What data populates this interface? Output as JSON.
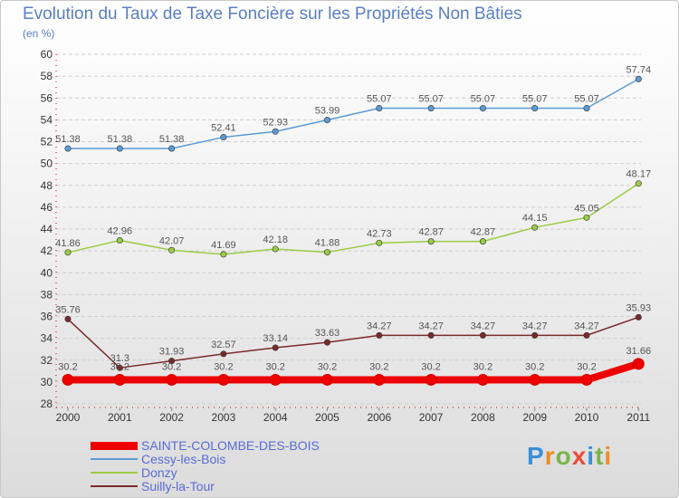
{
  "header": {
    "title": "Evolution du Taux de Taxe Foncière sur les Propriétés Non Bâties",
    "subtitle": "(en %)"
  },
  "logo": {
    "text": "Proxiti"
  },
  "chart_data": {
    "type": "line",
    "title": "Evolution du Taux de Taxe Foncière sur les Propriétés Non Bâties",
    "ylabel": "(en %)",
    "xlabel": "",
    "ylim": [
      28,
      60
    ],
    "yticks": [
      28,
      30,
      32,
      34,
      36,
      38,
      40,
      42,
      44,
      46,
      48,
      50,
      52,
      54,
      56,
      58,
      60
    ],
    "grid": "horizontal",
    "legend_position": "bottom-left",
    "categories": [
      "2000",
      "2001",
      "2002",
      "2003",
      "2004",
      "2005",
      "2006",
      "2007",
      "2008",
      "2009",
      "2010",
      "2011"
    ],
    "series": [
      {
        "name": "SAINTE-COLOMBE-DES-BOIS",
        "color": "#ee0000",
        "values": [
          30.2,
          30.2,
          30.2,
          30.2,
          30.2,
          30.2,
          30.2,
          30.2,
          30.2,
          30.2,
          30.2,
          31.66
        ],
        "labels": [
          "30.2",
          "30.2",
          "30.2",
          "30.2",
          "30.2",
          "30.2",
          "30.2",
          "30.2",
          "30.2",
          "30.2",
          "30.2",
          "31.66"
        ]
      },
      {
        "name": "Cessy-les-Bois",
        "color": "#5b9bd5",
        "values": [
          51.38,
          51.38,
          51.38,
          52.41,
          52.93,
          53.99,
          55.07,
          55.07,
          55.07,
          55.07,
          55.07,
          57.74
        ],
        "labels": [
          "51.38",
          "51.38",
          "51.38",
          "52.41",
          "52.93",
          "53.99",
          "55.07",
          "55.07",
          "55.07",
          "55.07",
          "55.07",
          "57.74"
        ]
      },
      {
        "name": "Donzy",
        "color": "#99cc44",
        "values": [
          41.86,
          42.96,
          42.07,
          41.69,
          42.18,
          41.88,
          42.73,
          42.87,
          42.87,
          44.15,
          45.05,
          48.17
        ],
        "labels": [
          "41.86",
          "42.96",
          "42.07",
          "41.69",
          "42.18",
          "41.88",
          "42.73",
          "42.87",
          "42.87",
          "44.15",
          "45.05",
          "48.17"
        ]
      },
      {
        "name": "Suilly-la-Tour",
        "color": "#7a2a2a",
        "values": [
          35.76,
          31.3,
          31.93,
          32.57,
          33.14,
          33.63,
          34.27,
          34.27,
          34.27,
          34.27,
          34.27,
          35.93
        ],
        "labels": [
          "35.76",
          "31.3",
          "31.93",
          "32.57",
          "33.14",
          "33.63",
          "34.27",
          "34.27",
          "34.27",
          "34.27",
          "34.27",
          "35.93"
        ]
      }
    ]
  }
}
